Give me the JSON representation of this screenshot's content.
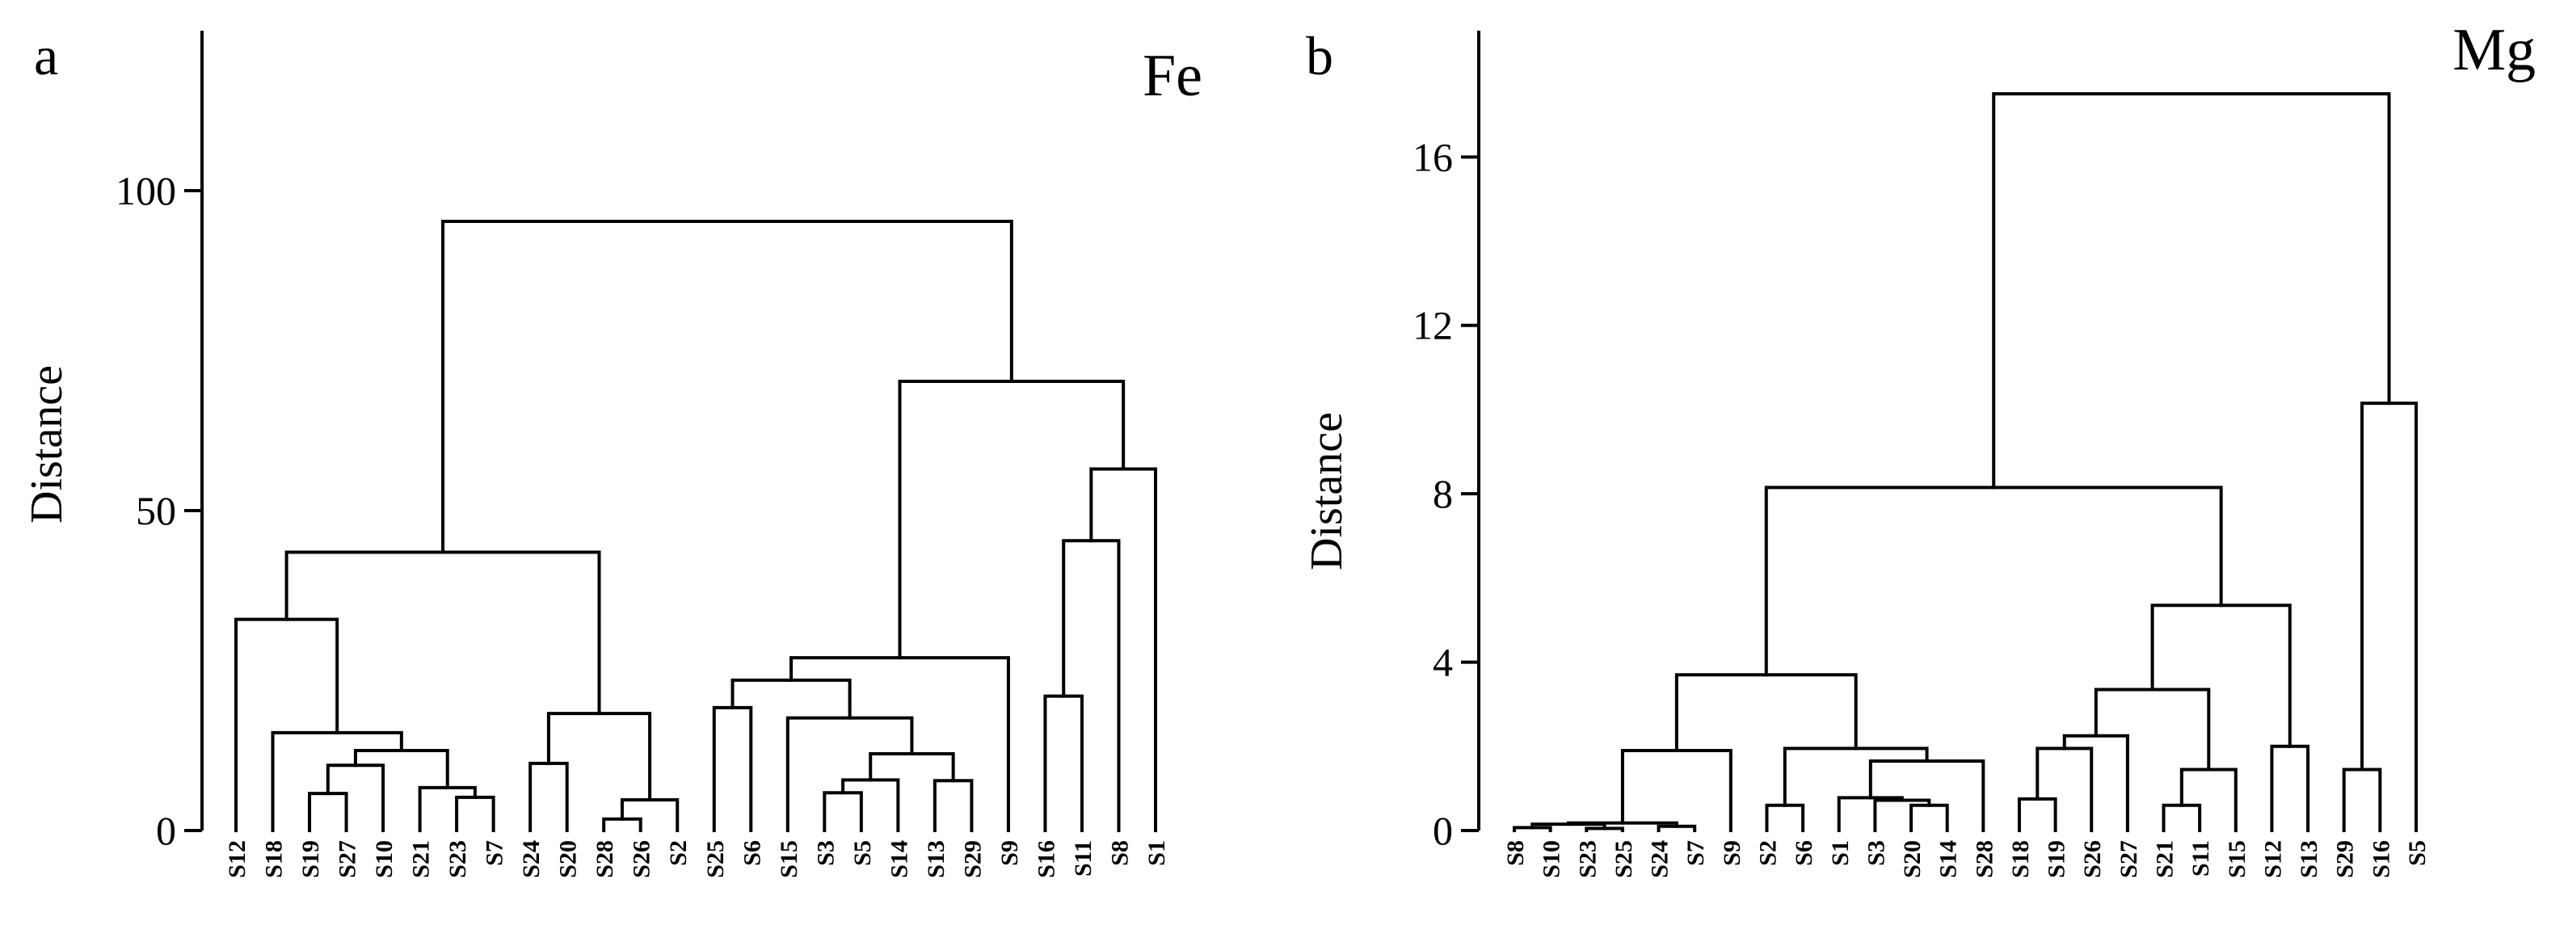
{
  "chart_data": [
    {
      "type": "dendrogram",
      "panel": "a",
      "title": "Fe",
      "ylabel": "Distance",
      "ylim": [
        0,
        125
      ],
      "yticks": [
        0,
        50,
        100
      ],
      "leaves": [
        "S12",
        "S18",
        "S19",
        "S27",
        "S10",
        "S21",
        "S23",
        "S7",
        "S24",
        "S20",
        "S28",
        "S26",
        "S2",
        "S25",
        "S6",
        "S15",
        "S3",
        "S5",
        "S14",
        "S13",
        "S29",
        "S9",
        "S16",
        "S11",
        "S8",
        "S1"
      ],
      "merges": [
        {
          "a": "S19",
          "b": "S27",
          "height": 5.8
        },
        {
          "a": "S23",
          "b": "S7",
          "height": 5.2
        },
        {
          "a": "S28",
          "b": "S26",
          "height": 1.8
        },
        {
          "a": "S3",
          "b": "S5",
          "height": 5.9
        },
        {
          "a": "S13",
          "b": "S29",
          "height": 7.8
        },
        {
          "a": "S21",
          "b": 1,
          "height": 6.7
        },
        {
          "a": "S24",
          "b": "S20",
          "height": 10.5
        },
        {
          "a": 2,
          "b": "S2",
          "height": 4.8
        },
        {
          "a": 3,
          "b": "S14",
          "height": 7.9
        },
        {
          "a": "S25",
          "b": "S6",
          "height": 19.2
        },
        {
          "a": "S16",
          "b": "S11",
          "height": 21.0
        },
        {
          "a": 0,
          "b": "S10",
          "height": 10.2
        },
        {
          "a": 11,
          "b": 5,
          "height": 12.5
        },
        {
          "a": "S18",
          "b": 12,
          "height": 15.3
        },
        {
          "a": 8,
          "b": 4,
          "height": 12.0
        },
        {
          "a": "S15",
          "b": 14,
          "height": 17.6
        },
        {
          "a": 9,
          "b": 15,
          "height": 23.5
        },
        {
          "a": 16,
          "b": "S9",
          "height": 27.0
        },
        {
          "a": "S12",
          "b": 13,
          "height": 33.0
        },
        {
          "a": 6,
          "b": 7,
          "height": 18.3
        },
        {
          "a": 18,
          "b": 19,
          "height": 43.5
        },
        {
          "a": 10,
          "b": "S8",
          "height": 45.3
        },
        {
          "a": 21,
          "b": "S1",
          "height": 56.5
        },
        {
          "a": 17,
          "b": 22,
          "height": 70.2
        },
        {
          "a": 20,
          "b": 23,
          "height": 95.2
        }
      ]
    },
    {
      "type": "dendrogram",
      "panel": "b",
      "title": "Mg",
      "ylabel": "Distance",
      "ylim": [
        0,
        19
      ],
      "yticks": [
        0,
        4,
        8,
        12,
        16
      ],
      "leaves": [
        "S8",
        "S10",
        "S23",
        "S25",
        "S24",
        "S7",
        "S9",
        "S2",
        "S6",
        "S1",
        "S3",
        "S20",
        "S14",
        "S28",
        "S18",
        "S19",
        "S26",
        "S27",
        "S21",
        "S11",
        "S15",
        "S12",
        "S13",
        "S29",
        "S16",
        "S5"
      ],
      "merges": [
        {
          "a": "S8",
          "b": "S10",
          "height": 0.07
        },
        {
          "a": "S23",
          "b": "S25",
          "height": 0.05
        },
        {
          "a": "S24",
          "b": "S7",
          "height": 0.1
        },
        {
          "a": 0,
          "b": 1,
          "height": 0.15
        },
        {
          "a": 3,
          "b": 2,
          "height": 0.18
        },
        {
          "a": 4,
          "b": "S9",
          "height": 1.9
        },
        {
          "a": "S2",
          "b": "S6",
          "height": 0.6
        },
        {
          "a": "S20",
          "b": "S14",
          "height": 0.6
        },
        {
          "a": "S3",
          "b": 7,
          "height": 0.72
        },
        {
          "a": "S1",
          "b": 8,
          "height": 0.78
        },
        {
          "a": 9,
          "b": "S28",
          "height": 1.65
        },
        {
          "a": 6,
          "b": 10,
          "height": 1.95
        },
        {
          "a": 5,
          "b": 11,
          "height": 3.7
        },
        {
          "a": "S18",
          "b": "S19",
          "height": 0.75
        },
        {
          "a": 13,
          "b": "S26",
          "height": 1.95
        },
        {
          "a": 14,
          "b": "S27",
          "height": 2.25
        },
        {
          "a": "S21",
          "b": "S11",
          "height": 0.6
        },
        {
          "a": 16,
          "b": "S15",
          "height": 1.45
        },
        {
          "a": 15,
          "b": 17,
          "height": 3.35
        },
        {
          "a": "S12",
          "b": "S13",
          "height": 2.0
        },
        {
          "a": 18,
          "b": 19,
          "height": 5.35
        },
        {
          "a": 12,
          "b": 20,
          "height": 8.15
        },
        {
          "a": "S29",
          "b": "S16",
          "height": 1.45
        },
        {
          "a": 22,
          "b": "S5",
          "height": 10.15
        },
        {
          "a": 21,
          "b": 23,
          "height": 17.5
        }
      ]
    }
  ]
}
